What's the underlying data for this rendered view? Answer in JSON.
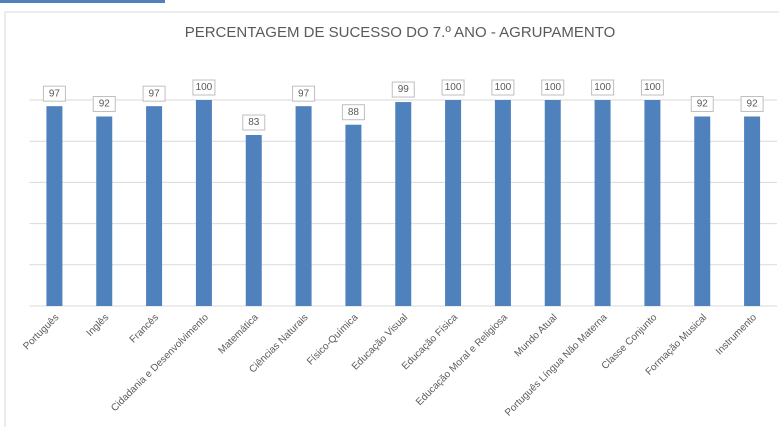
{
  "chart_data": {
    "type": "bar",
    "title": "PERCENTAGEM DE SUCESSO DO 7.º ANO - AGRUPAMENTO",
    "categories": [
      "Português",
      "Inglês",
      "Francês",
      "Cidadania e Desenvolvimento",
      "Matemática",
      "Ciências Naturais",
      "Físico-Química",
      "Educação Visual",
      "Educação Física",
      "Educação Moral e Religiosa",
      "Mundo Atual",
      "Português Língua Não Materna",
      "Classe Conjunto",
      "Formação Musical",
      "Instrumento"
    ],
    "values": [
      97,
      92,
      97,
      100,
      83,
      97,
      88,
      99,
      100,
      100,
      100,
      100,
      100,
      92,
      92
    ],
    "color": "#4f81bd",
    "ylim": [
      0,
      100
    ],
    "yticks": [
      0,
      20,
      40,
      60,
      80,
      100
    ],
    "grid": true
  }
}
